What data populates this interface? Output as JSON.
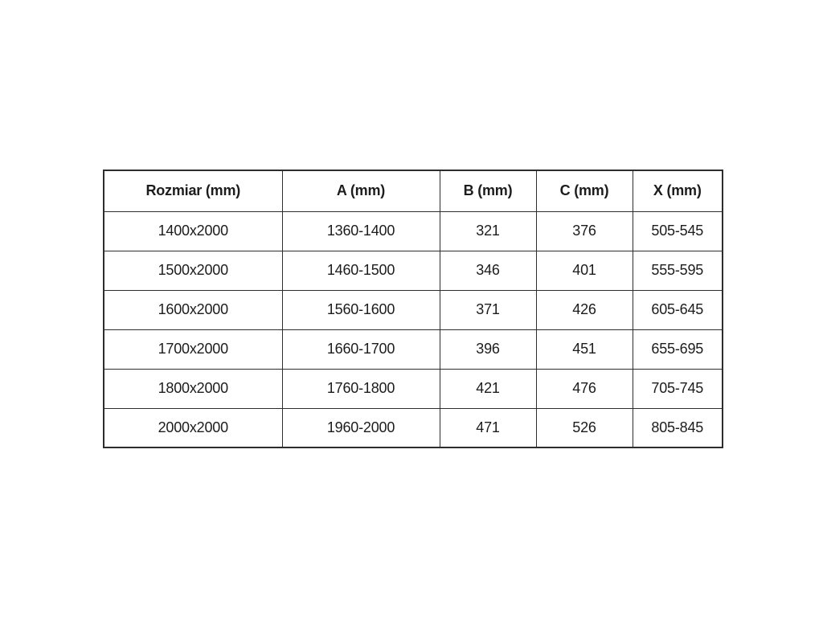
{
  "colors": {
    "background": "#ffffff",
    "table_border": "#2d2d2d",
    "text": "#1c1c1c"
  },
  "chart_data": {
    "type": "table",
    "title": "",
    "columns": [
      "Rozmiar (mm)",
      "A (mm)",
      "B (mm)",
      "C (mm)",
      "X (mm)"
    ],
    "rows": [
      [
        "1400x2000",
        "1360-1400",
        "321",
        "376",
        "505-545"
      ],
      [
        "1500x2000",
        "1460-1500",
        "346",
        "401",
        "555-595"
      ],
      [
        "1600x2000",
        "1560-1600",
        "371",
        "426",
        "605-645"
      ],
      [
        "1700x2000",
        "1660-1700",
        "396",
        "451",
        "655-695"
      ],
      [
        "1800x2000",
        "1760-1800",
        "421",
        "476",
        "705-745"
      ],
      [
        "2000x2000",
        "1960-2000",
        "471",
        "526",
        "805-845"
      ]
    ]
  }
}
